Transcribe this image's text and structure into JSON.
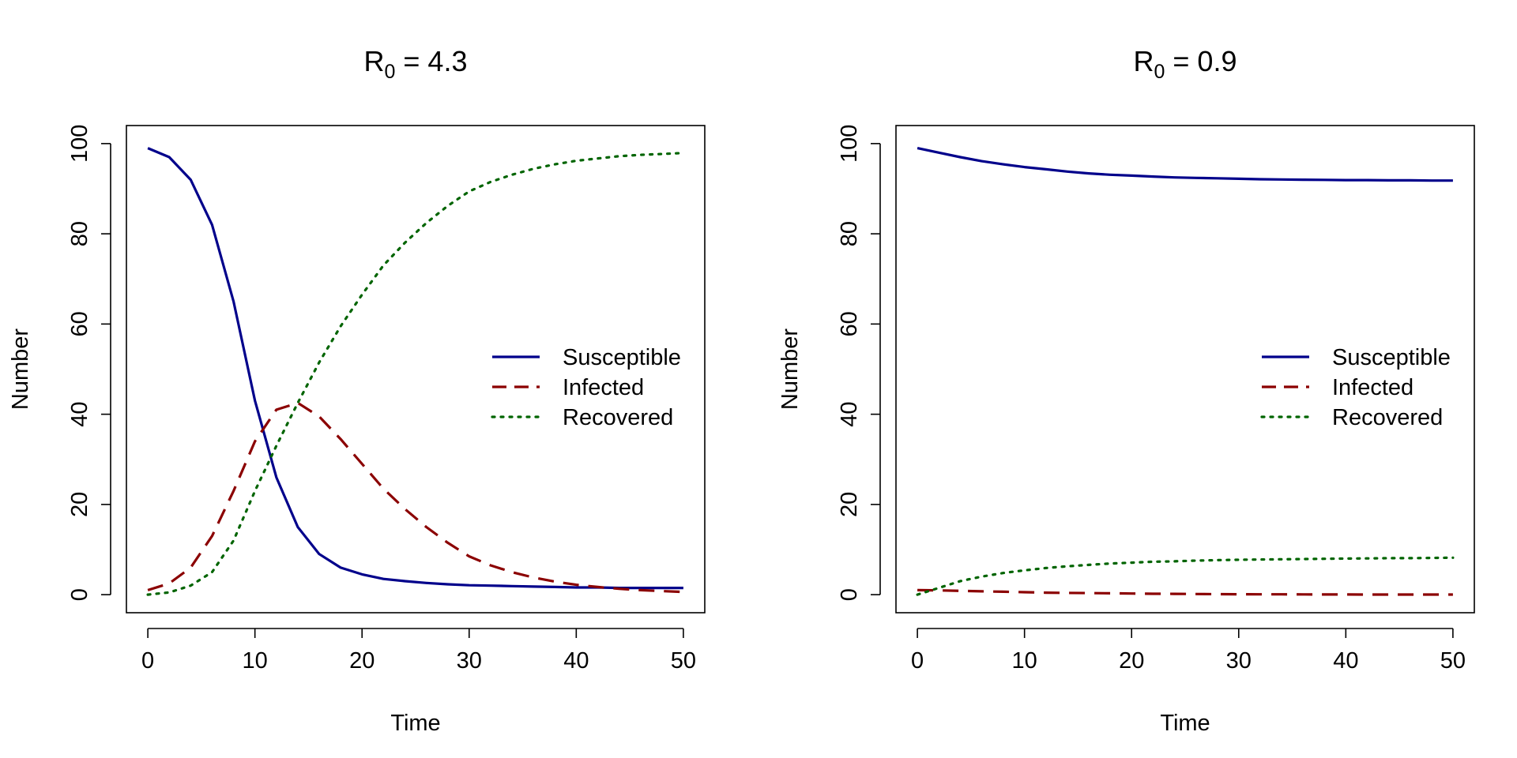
{
  "chart_data": [
    {
      "type": "line",
      "title": "R0 = 4.3",
      "title_main": "R",
      "title_sub": "0",
      "title_rest": " = 4.3",
      "xlabel": "Time",
      "ylabel": "Number",
      "xlim": [
        -2,
        52
      ],
      "ylim": [
        -4,
        104
      ],
      "xticks": [
        0,
        10,
        20,
        30,
        40,
        50
      ],
      "yticks": [
        0,
        20,
        40,
        60,
        80,
        100
      ],
      "grid": false,
      "legend_position": "right",
      "x": [
        0,
        2,
        4,
        6,
        8,
        10,
        12,
        14,
        16,
        18,
        20,
        22,
        24,
        26,
        28,
        30,
        32,
        34,
        36,
        38,
        40,
        42,
        44,
        46,
        48,
        50
      ],
      "series": [
        {
          "name": "Susceptible",
          "color": "#00008B",
          "dash": "solid",
          "values": [
            99,
            97,
            92,
            82,
            65,
            43,
            26,
            15,
            9,
            6,
            4.5,
            3.5,
            3,
            2.6,
            2.3,
            2.1,
            2,
            1.9,
            1.8,
            1.7,
            1.6,
            1.6,
            1.5,
            1.5,
            1.5,
            1.5
          ]
        },
        {
          "name": "Infected",
          "color": "#8B0000",
          "dash": "dashed",
          "values": [
            1,
            2.5,
            6,
            13,
            23,
            34,
            41,
            42.5,
            39.5,
            34.5,
            29,
            23.5,
            19,
            15,
            11.5,
            8.5,
            6.5,
            5,
            3.8,
            2.9,
            2.2,
            1.7,
            1.3,
            1,
            0.8,
            0.6
          ]
        },
        {
          "name": "Recovered",
          "color": "#006400",
          "dash": "dotted",
          "values": [
            0,
            0.5,
            2,
            5,
            12,
            23,
            33,
            42.5,
            51.5,
            59.5,
            66.5,
            73,
            78,
            82.4,
            86.2,
            89.4,
            91.5,
            93.1,
            94.4,
            95.4,
            96.2,
            96.7,
            97.2,
            97.5,
            97.7,
            97.9
          ]
        }
      ]
    },
    {
      "type": "line",
      "title": "R0 = 0.9",
      "title_main": "R",
      "title_sub": "0",
      "title_rest": " = 0.9",
      "xlabel": "Time",
      "ylabel": "Number",
      "xlim": [
        -2,
        52
      ],
      "ylim": [
        -4,
        104
      ],
      "xticks": [
        0,
        10,
        20,
        30,
        40,
        50
      ],
      "yticks": [
        0,
        20,
        40,
        60,
        80,
        100
      ],
      "grid": false,
      "legend_position": "right",
      "x": [
        0,
        2,
        4,
        6,
        8,
        10,
        12,
        14,
        16,
        18,
        20,
        22,
        24,
        26,
        28,
        30,
        32,
        34,
        36,
        38,
        40,
        42,
        44,
        46,
        48,
        50
      ],
      "series": [
        {
          "name": "Susceptible",
          "color": "#00008B",
          "dash": "solid",
          "values": [
            99,
            98,
            97,
            96.1,
            95.4,
            94.8,
            94.3,
            93.8,
            93.4,
            93.1,
            92.9,
            92.7,
            92.5,
            92.4,
            92.3,
            92.2,
            92.1,
            92.05,
            92,
            91.95,
            91.9,
            91.9,
            91.85,
            91.85,
            91.8,
            91.8
          ]
        },
        {
          "name": "Infected",
          "color": "#8B0000",
          "dash": "dashed",
          "values": [
            1,
            0.95,
            0.85,
            0.75,
            0.65,
            0.55,
            0.45,
            0.4,
            0.35,
            0.3,
            0.25,
            0.2,
            0.18,
            0.15,
            0.12,
            0.1,
            0.08,
            0.07,
            0.06,
            0.05,
            0.04,
            0.03,
            0.03,
            0.02,
            0.02,
            0.02
          ]
        },
        {
          "name": "Recovered",
          "color": "#006400",
          "dash": "dotted",
          "values": [
            0,
            1.5,
            3,
            4,
            4.8,
            5.4,
            5.9,
            6.3,
            6.6,
            6.9,
            7.1,
            7.3,
            7.4,
            7.55,
            7.65,
            7.75,
            7.8,
            7.85,
            7.9,
            7.95,
            8,
            8.05,
            8.1,
            8.1,
            8.15,
            8.2
          ]
        }
      ]
    }
  ]
}
